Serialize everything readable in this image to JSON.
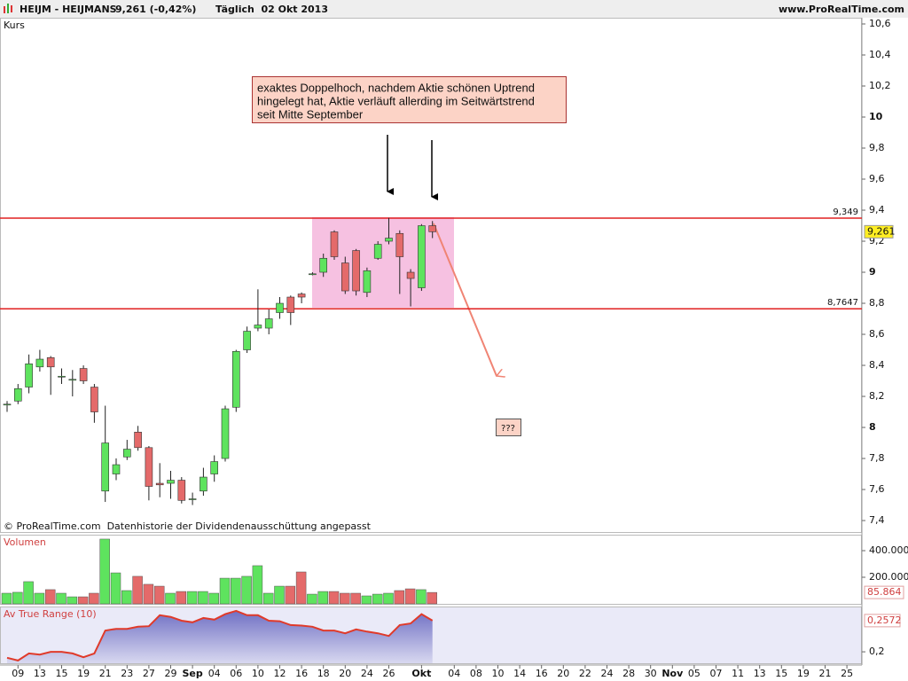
{
  "header": {
    "symbol": "HEIJM - HEIJMANS",
    "quote": "9,261 (-0,42%)",
    "period": "Täglich  02 Okt 2013",
    "source": "www.ProRealTime.com"
  },
  "chart_data": [
    {
      "type": "candlestick",
      "label": "Kurs",
      "open": [
        8.15,
        8.17,
        8.26,
        8.39,
        8.45,
        8.33,
        8.31,
        8.38,
        8.26,
        7.59,
        7.7,
        7.81,
        7.97,
        7.87,
        7.64,
        7.64,
        7.66,
        7.54,
        7.59,
        7.7,
        7.8,
        8.13,
        8.5,
        8.64,
        8.64,
        8.74,
        8.84,
        8.86,
        8.99,
        9.0,
        9.26,
        9.06,
        9.14,
        8.87,
        9.09,
        9.2,
        9.25,
        9.0,
        8.9,
        9.3
      ],
      "high": [
        8.17,
        8.28,
        8.47,
        8.5,
        8.46,
        8.38,
        8.37,
        8.4,
        8.28,
        8.14,
        7.8,
        7.92,
        8.01,
        7.88,
        7.77,
        7.72,
        7.68,
        7.58,
        7.74,
        7.82,
        8.14,
        8.5,
        8.65,
        8.89,
        8.76,
        8.84,
        8.85,
        8.87,
        9.0,
        9.12,
        9.27,
        9.1,
        9.15,
        9.03,
        9.2,
        9.35,
        9.27,
        9.02,
        9.31,
        9.33
      ],
      "low": [
        8.1,
        8.15,
        8.22,
        8.36,
        8.21,
        8.28,
        8.2,
        8.28,
        8.03,
        7.52,
        7.66,
        7.79,
        7.85,
        7.53,
        7.55,
        7.54,
        7.51,
        7.5,
        7.56,
        7.65,
        7.78,
        8.1,
        8.48,
        8.62,
        8.6,
        8.7,
        8.66,
        8.8,
        8.98,
        8.97,
        9.08,
        8.86,
        8.85,
        8.84,
        9.08,
        9.18,
        8.86,
        8.78,
        8.88,
        9.22
      ],
      "close": [
        8.15,
        8.25,
        8.41,
        8.44,
        8.39,
        8.33,
        8.31,
        8.3,
        8.1,
        7.9,
        7.76,
        7.86,
        7.87,
        7.62,
        7.63,
        7.66,
        7.53,
        7.54,
        7.68,
        7.78,
        8.12,
        8.49,
        8.62,
        8.66,
        8.7,
        8.8,
        8.74,
        8.84,
        8.99,
        9.09,
        9.1,
        8.88,
        8.88,
        9.01,
        9.18,
        9.22,
        9.1,
        8.96,
        9.3,
        9.261
      ],
      "up_color": "#5ee35e",
      "down_color": "#e46a6a",
      "ylim": [
        7.326,
        10.64
      ],
      "yticks": [
        {
          "value": 7.4,
          "label": "7,4"
        },
        {
          "value": 7.6,
          "label": "7,6"
        },
        {
          "value": 7.8,
          "label": "7,8"
        },
        8,
        {
          "value": 8.2,
          "label": "8,2"
        },
        {
          "value": 8.4,
          "label": "8,4"
        },
        {
          "value": 8.6,
          "label": "8,6"
        },
        {
          "value": 8.8,
          "label": "8,8"
        },
        9,
        {
          "value": 9.2,
          "label": "9,2"
        },
        {
          "value": 9.4,
          "label": "9,4"
        },
        {
          "value": 9.6,
          "label": "9,6"
        },
        {
          "value": 9.8,
          "label": "9,8"
        },
        10,
        {
          "value": 10.2,
          "label": "10,2"
        },
        {
          "value": 10.4,
          "label": "10,4"
        },
        {
          "value": 10.6,
          "label": "10,6"
        }
      ],
      "levels": [
        {
          "value": 9.349,
          "label": "9,349"
        },
        {
          "value": 8.7647,
          "label": "8,7647"
        }
      ],
      "level_color": "#e02020",
      "current": {
        "value": 9.261,
        "label": "9,261"
      },
      "annotation": [
        "exaktes Doppelhoch, nachdem Aktie schönen Uptrend",
        "hingelegt hat, Aktie verläuft allerding im Seitwärtstrend",
        "seit Mitte September"
      ],
      "question": "???",
      "footer": "© ProRealTime.com  Datenhistorie der Dividendenausschüttung angepasst",
      "xticks": [
        "09",
        "13",
        "15",
        "19",
        "21",
        "23",
        "27",
        "29",
        "Sep",
        "04",
        "06",
        "10",
        "12",
        "16",
        "18",
        "20",
        "24",
        "26",
        "Okt",
        "04",
        "08",
        "10",
        "14",
        "16",
        "20",
        "22",
        "24",
        "28",
        "30",
        "Nov",
        "05",
        "07",
        "11",
        "13",
        "15",
        "19",
        "21",
        "25"
      ]
    },
    {
      "type": "bar",
      "label": "Volumen",
      "values": [
        80000,
        87000,
        167000,
        80000,
        107000,
        80000,
        53000,
        53000,
        80000,
        487000,
        233000,
        100000,
        207000,
        147000,
        133000,
        80000,
        93000,
        93000,
        93000,
        80000,
        193000,
        193000,
        207000,
        287000,
        80000,
        133000,
        133000,
        240000,
        73000,
        93000,
        93000,
        80000,
        80000,
        60000,
        73000,
        80000,
        100000,
        113000,
        107000,
        85864
      ],
      "ylim": [
        0,
        520000
      ],
      "yticks": [
        {
          "value": 200000,
          "label": "200.000"
        },
        {
          "value": 400000,
          "label": "400.000"
        }
      ],
      "current": {
        "value": 85864,
        "label": "85.864"
      }
    },
    {
      "type": "line",
      "label": "Av True Range (10)",
      "values": [
        0.189,
        0.184,
        0.197,
        0.195,
        0.2,
        0.2,
        0.197,
        0.19,
        0.197,
        0.239,
        0.242,
        0.242,
        0.246,
        0.247,
        0.267,
        0.264,
        0.257,
        0.254,
        0.262,
        0.259,
        0.269,
        0.275,
        0.267,
        0.267,
        0.257,
        0.256,
        0.249,
        0.248,
        0.246,
        0.239,
        0.239,
        0.234,
        0.241,
        0.237,
        0.234,
        0.229,
        0.249,
        0.252,
        0.269,
        0.2572
      ],
      "color": "#e03a2a",
      "fill": "#8c8cd0",
      "ylim": [
        0.179,
        0.283
      ],
      "yticks": [
        {
          "value": 0.2,
          "label": "0,2"
        }
      ],
      "current": {
        "value": 0.2572,
        "label": "0,2572"
      }
    }
  ]
}
